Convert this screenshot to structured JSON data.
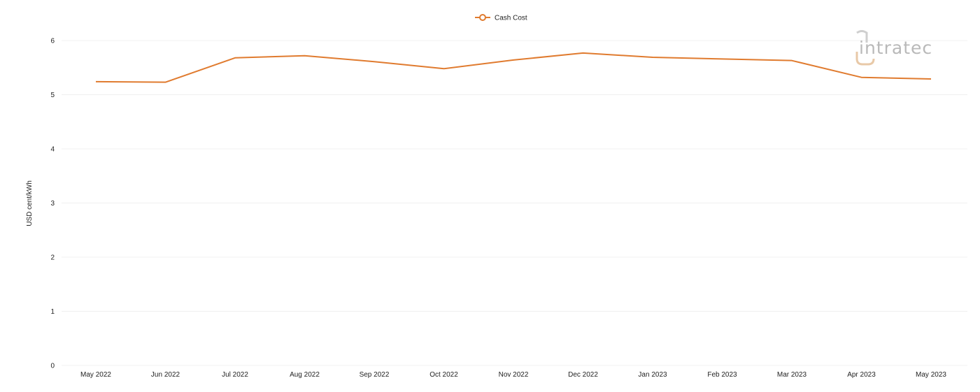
{
  "chart_data": {
    "type": "line",
    "title": "",
    "xlabel": "",
    "ylabel": "USD cent/kWh",
    "ylim": [
      0,
      6
    ],
    "yticks": [
      0,
      1,
      2,
      3,
      4,
      5,
      6
    ],
    "grid": true,
    "legend_position": "top-center",
    "categories": [
      "May 2022",
      "Jun 2022",
      "Jul 2022",
      "Aug 2022",
      "Sep 2022",
      "Oct 2022",
      "Nov 2022",
      "Dec 2022",
      "Jan 2023",
      "Feb 2023",
      "Mar 2023",
      "Apr 2023",
      "May 2023"
    ],
    "series": [
      {
        "name": "Cash Cost",
        "color": "#e07b2f",
        "values": [
          5.24,
          5.23,
          5.68,
          5.72,
          5.61,
          5.48,
          5.64,
          5.77,
          5.69,
          5.66,
          5.63,
          5.32,
          5.29
        ]
      }
    ]
  },
  "logo": {
    "text": "intratec",
    "accent_color": "#e8c9a8",
    "text_color": "#b9b9b9"
  }
}
